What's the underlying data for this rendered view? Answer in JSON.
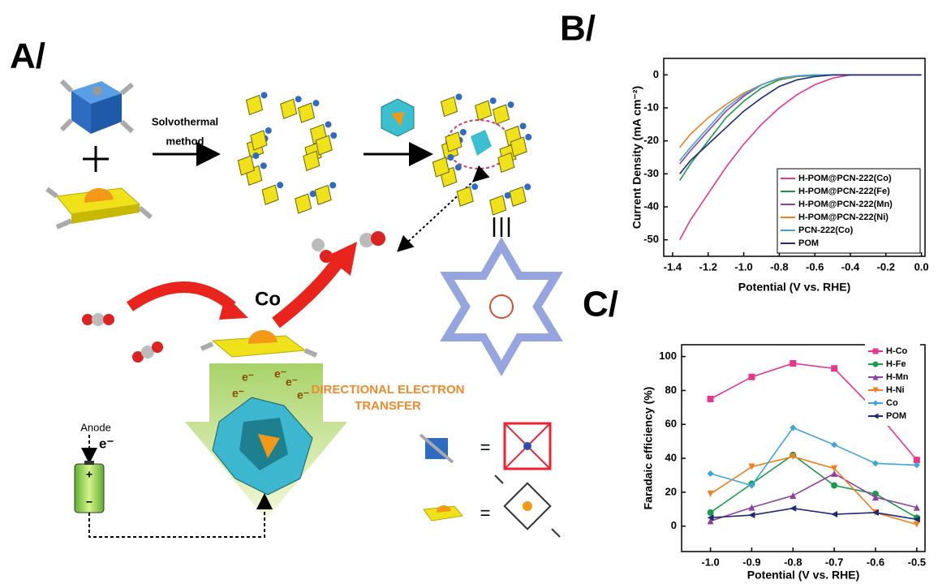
{
  "panel_a": {
    "label": "A/",
    "step_label": [
      "Solvothermal",
      "method"
    ],
    "metal": "Co",
    "transfer_label": [
      "DIRECTIONAL ELECTRON",
      "TRANSFER"
    ],
    "anode": "Anode",
    "electron": "e⁻",
    "arrow_electrons": [
      "e⁻",
      "e⁻",
      "e⁻",
      "e⁻",
      "e⁻"
    ],
    "battery_plus": "+",
    "battery_minus": "−",
    "equals": [
      "=",
      "="
    ]
  },
  "chart_data": [
    {
      "type": "line",
      "panel_label": "B/",
      "xlabel": "Potential (V vs. RHE)",
      "ylabel": "Current Density (mA cm⁻²)",
      "x": [
        -1.36,
        -1.3,
        -1.2,
        -1.1,
        -1.0,
        -0.9,
        -0.8,
        -0.7,
        -0.6,
        -0.5,
        -0.4,
        -0.2,
        0.0
      ],
      "series": [
        {
          "name": "H-POM@PCN-222(Co)",
          "color": "#e8368f",
          "values": [
            -50,
            -44,
            -36,
            -28,
            -21,
            -15,
            -10,
            -6,
            -3,
            -1,
            0,
            0,
            0
          ]
        },
        {
          "name": "H-POM@PCN-222(Fe)",
          "color": "#1a9b4b",
          "values": [
            -32,
            -27,
            -20,
            -13,
            -8,
            -4,
            -1.5,
            -0.5,
            -0.2,
            0,
            0,
            0,
            0
          ]
        },
        {
          "name": "H-POM@PCN-222(Mn)",
          "color": "#8e3fa0",
          "values": [
            -27,
            -23,
            -17,
            -11,
            -6.5,
            -3,
            -1,
            -0.3,
            0,
            0,
            0,
            0,
            0
          ]
        },
        {
          "name": "H-POM@PCN-222(Ni)",
          "color": "#f07f1c",
          "values": [
            -22,
            -18,
            -13,
            -9,
            -5.5,
            -3,
            -1.2,
            -0.4,
            0,
            0,
            0,
            0,
            0
          ]
        },
        {
          "name": "PCN-222(Co)",
          "color": "#3ea5dc",
          "values": [
            -26,
            -22,
            -16,
            -10,
            -6,
            -3,
            -1,
            -0.3,
            0,
            0,
            0,
            0,
            0
          ]
        },
        {
          "name": "POM",
          "color": "#1e2a78",
          "values": [
            -30,
            -26,
            -21,
            -16,
            -11,
            -7,
            -3.5,
            -1.5,
            -0.5,
            0,
            0,
            0,
            0
          ]
        }
      ],
      "xlim": [
        -1.45,
        0.02
      ],
      "ylim": [
        -55,
        5
      ],
      "xticks": [
        -1.4,
        -1.2,
        {
          "value": -1.0,
          "label": "-1.0"
        },
        -0.8,
        -0.6,
        -0.4,
        -0.2,
        {
          "value": 0.0,
          "label": "0.0"
        }
      ],
      "yticks": [
        0,
        -10,
        -20,
        -30,
        -40,
        -50
      ],
      "legend": "lower right"
    },
    {
      "type": "line",
      "panel_label": "C/",
      "xlabel": "Potential (V vs. RHE)",
      "ylabel": "Faradaic efficiency (%)",
      "x": [
        -1.0,
        -0.9,
        -0.8,
        -0.7,
        -0.6,
        -0.5
      ],
      "series": [
        {
          "name": "H-Co",
          "color": "#e8368f",
          "marker": "square",
          "values": [
            75,
            88,
            96,
            93,
            68,
            39
          ]
        },
        {
          "name": "H-Fe",
          "color": "#1a9b4b",
          "marker": "circle",
          "values": [
            8,
            25,
            42,
            24,
            19,
            5
          ]
        },
        {
          "name": "H-Mn",
          "color": "#8e3fa0",
          "marker": "triangle-up",
          "values": [
            3,
            11,
            18,
            31,
            17,
            11
          ]
        },
        {
          "name": "H-Ni",
          "color": "#f07f1c",
          "marker": "triangle-down",
          "values": [
            19,
            35,
            41,
            34,
            8,
            1
          ]
        },
        {
          "name": "Co",
          "color": "#3ea5dc",
          "marker": "diamond",
          "values": [
            31,
            24,
            58,
            48,
            37,
            36
          ]
        },
        {
          "name": "POM",
          "color": "#1e2a78",
          "marker": "triangle-left",
          "values": [
            5,
            6.5,
            10.5,
            7,
            8,
            4
          ]
        }
      ],
      "xlim": [
        -1.07,
        -0.48
      ],
      "ylim": [
        -15,
        107
      ],
      "xticks": [
        {
          "value": -1.0,
          "label": "-1.0"
        },
        -0.9,
        -0.8,
        -0.7,
        -0.6,
        -0.5
      ],
      "yticks": [
        0,
        20,
        40,
        60,
        80,
        100
      ],
      "legend": "upper right"
    }
  ]
}
